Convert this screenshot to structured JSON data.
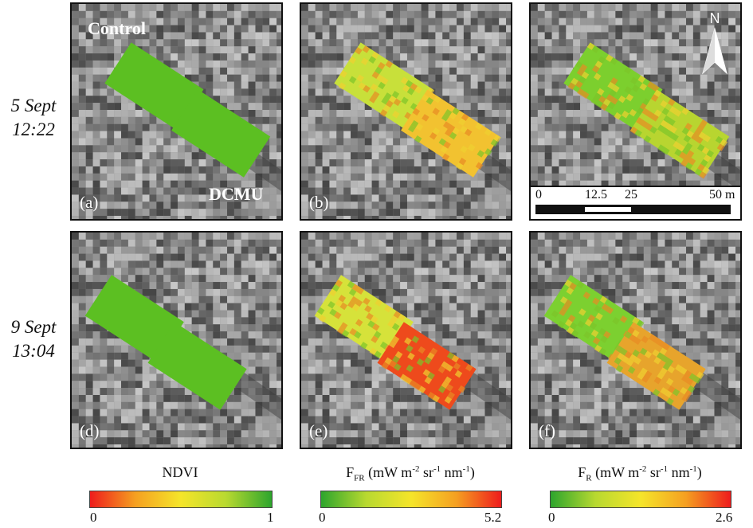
{
  "row_labels": [
    {
      "date": "5 Sept",
      "time": "12:22"
    },
    {
      "date": "9 Sept",
      "time": "13:04"
    }
  ],
  "panels": [
    {
      "letter": "(a)",
      "product": "NDVI",
      "control_color": "#5cbf22",
      "dcmu_color": "#5cbf22"
    },
    {
      "letter": "(b)",
      "product": "FFR",
      "control_color": "#c8e03a",
      "dcmu_color": "#f2c230"
    },
    {
      "letter": "(c)",
      "product": "FR",
      "control_color": "#7ccf2e",
      "dcmu_color": "#b8d530"
    },
    {
      "letter": "(d)",
      "product": "NDVI",
      "control_color": "#5cbf22",
      "dcmu_color": "#5cbf22"
    },
    {
      "letter": "(e)",
      "product": "FFR",
      "control_color": "#d6e23a",
      "dcmu_color": "#ee4a1c"
    },
    {
      "letter": "(f)",
      "product": "FR",
      "control_color": "#7cd030",
      "dcmu_color": "#e7a42c"
    }
  ],
  "plot_labels": {
    "control": "Control",
    "dcmu": "DCMU"
  },
  "north_arrow": {
    "label": "N"
  },
  "scale_bar": {
    "ticks": [
      "0",
      "12.5",
      "25",
      "50 m"
    ]
  },
  "legends": [
    {
      "title": "NDVI",
      "min": "0",
      "max": "1",
      "colors": [
        "#ee1c1c",
        "#f5a021",
        "#f5e52a",
        "#b8d930",
        "#2da52d"
      ]
    },
    {
      "title_main": "F",
      "title_sub": "FR",
      "units": "(mW m",
      "sup1": "-2",
      "mid": " sr",
      "sup2": "-1",
      "end": " nm",
      "sup3": "-1",
      "close": ")",
      "min": "0",
      "max": "5.2",
      "colors": [
        "#2da52d",
        "#b8d930",
        "#f5e52a",
        "#f5a021",
        "#ee1c1c"
      ]
    },
    {
      "title_main": "F",
      "title_sub": "R",
      "units": "(mW m",
      "sup1": "-2",
      "mid": " sr",
      "sup2": "-1",
      "end": " nm",
      "sup3": "-1",
      "close": ")",
      "min": "0",
      "max": "2.6",
      "colors": [
        "#2da52d",
        "#b8d930",
        "#f5e52a",
        "#f5a021",
        "#ee1c1c"
      ]
    }
  ]
}
